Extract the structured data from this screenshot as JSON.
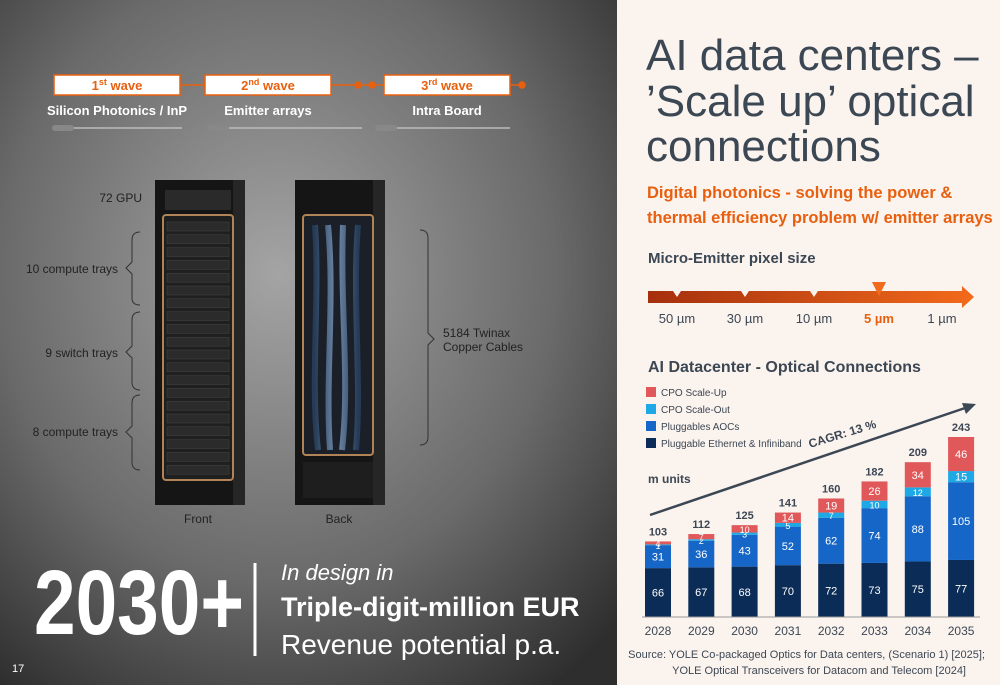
{
  "slide": {
    "page_number": "17",
    "waves": [
      {
        "number": "1",
        "sup": "st",
        "word": " wave",
        "label": "Silicon Photonics / InP"
      },
      {
        "number": "2",
        "sup": "nd",
        "word": " wave",
        "label": "Emitter arrays"
      },
      {
        "number": "3",
        "sup": "rd",
        "word": " wave",
        "label": "Intra Board"
      }
    ],
    "rack": {
      "gpu": "72 GPU",
      "trays": [
        "10 compute trays",
        "9 switch trays",
        "8 compute trays"
      ],
      "cables": [
        "5184 Twinax",
        "Copper Cables"
      ],
      "front": "Front",
      "back": "Back"
    },
    "headline": {
      "big": "2030+",
      "intro": "In design in",
      "bold": "Triple-digit-million EUR",
      "line": "Revenue potential p.a."
    },
    "title": [
      "AI data centers –",
      "’Scale up’ optical",
      "connections"
    ],
    "subtitle": [
      "Digital photonics - solving the power &",
      "thermal efficiency problem w/ emitter arrays"
    ],
    "emitter": {
      "title": "Micro-Emitter pixel size",
      "sizes": [
        "50 µm",
        "30 µm",
        "10 µm",
        "5 µm",
        "1 µm"
      ],
      "highlight": "5 µm"
    },
    "source": [
      "Source: YOLE Co-packaged Optics for Data centers, (Scenario 1) [2025];",
      "YOLE Optical Transceivers for Datacom and Telecom [2024]"
    ]
  },
  "chart_data": {
    "type": "stacked-bar",
    "title": "AI Datacenter - Optical Connections",
    "unit_label": "m units",
    "annotation": "CAGR: 13 %",
    "categories": [
      "2028",
      "2029",
      "2030",
      "2031",
      "2032",
      "2033",
      "2034",
      "2035"
    ],
    "series": [
      {
        "name": "Pluggable Ethernet & Infiniband",
        "color": "#0b2c57",
        "values": [
          66,
          67,
          68,
          70,
          72,
          73,
          75,
          77
        ]
      },
      {
        "name": "Pluggables AOCs",
        "color": "#1566c6",
        "values": [
          31,
          36,
          43,
          52,
          62,
          74,
          88,
          105
        ]
      },
      {
        "name": "CPO Scale-Out",
        "color": "#1fa8e6",
        "values": [
          1,
          2,
          3,
          5,
          7,
          10,
          12,
          15
        ]
      },
      {
        "name": "CPO Scale-Up",
        "color": "#e0585a",
        "values": [
          4,
          7,
          10,
          14,
          19,
          26,
          34,
          46
        ]
      }
    ],
    "totals": [
      103,
      112,
      125,
      141,
      160,
      182,
      209,
      243
    ]
  }
}
